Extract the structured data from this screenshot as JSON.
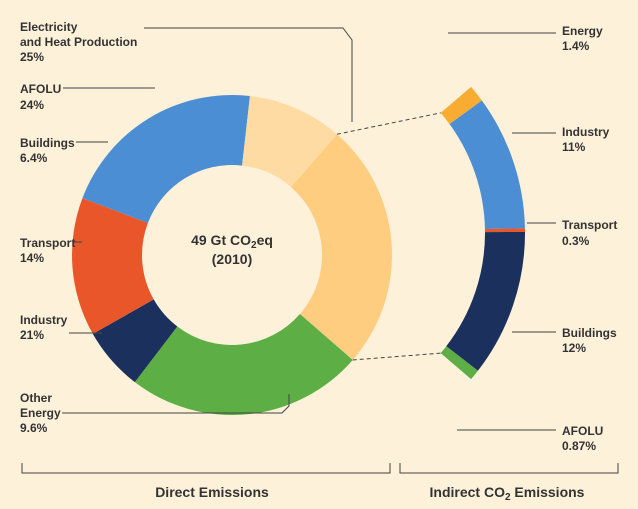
{
  "chart_data": [
    {
      "type": "pie",
      "variant": "donut",
      "center_label": {
        "line1": "49 Gt CO",
        "sub": "2",
        "line1_tail": "eq",
        "line2": "(2010)"
      },
      "caption": "Direct Emissions",
      "slices": [
        {
          "name": "Electricity",
          "name2": "and Heat Production",
          "value": 25,
          "label": "25%",
          "color": "#fecd7f"
        },
        {
          "name": "AFOLU",
          "value": 24,
          "label": "24%",
          "color": "#5dae45"
        },
        {
          "name": "Buildings",
          "value": 6.4,
          "label": "6.4%",
          "color": "#1c305e"
        },
        {
          "name": "Transport",
          "value": 14,
          "label": "14%",
          "color": "#e8562a"
        },
        {
          "name": "Industry",
          "value": 21,
          "label": "21%",
          "color": "#4c8ed3"
        },
        {
          "name": "Other",
          "name2": "Energy",
          "value": 9.6,
          "label": "9.6%",
          "color": "#fedba3"
        }
      ]
    },
    {
      "type": "pie",
      "variant": "arc-breakdown",
      "caption": "Indirect CO",
      "caption_sub": "2",
      "caption_tail": " Emissions",
      "slices": [
        {
          "name": "Energy",
          "value": 1.4,
          "label": "1.4%",
          "color": "#f9ac32"
        },
        {
          "name": "Industry",
          "value": 11,
          "label": "11%",
          "color": "#4c8ed3"
        },
        {
          "name": "Transport",
          "value": 0.3,
          "label": "0.3%",
          "color": "#e8562a"
        },
        {
          "name": "Buildings",
          "value": 12,
          "label": "12%",
          "color": "#1c305e"
        },
        {
          "name": "AFOLU",
          "value": 0.87,
          "label": "0.87%",
          "color": "#5dae45"
        }
      ]
    }
  ]
}
